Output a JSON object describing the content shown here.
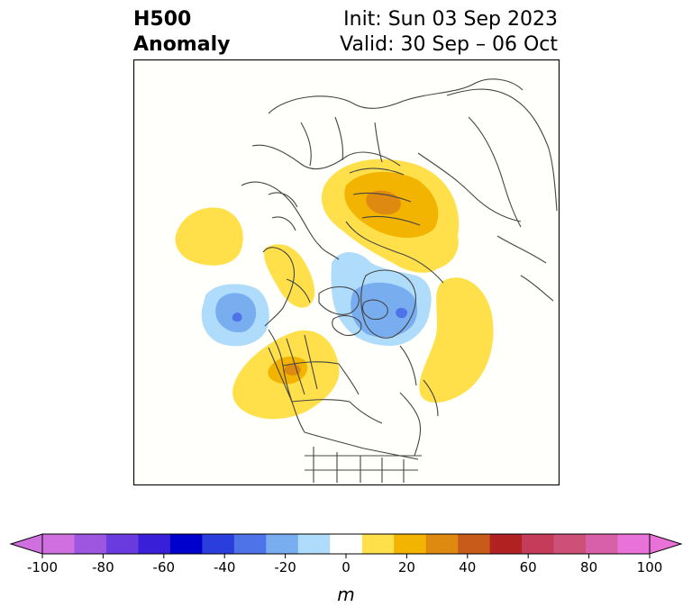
{
  "title": {
    "left_line1": "H500",
    "left_line2": "Anomaly",
    "right_line1": "Init: Sun 03 Sep 2023",
    "right_line2": "Valid: 30 Sep – 06 Oct"
  },
  "colorbar": {
    "unit": "m",
    "tick_labels": [
      "-100",
      "-80",
      "-60",
      "-40",
      "-20",
      "0",
      "20",
      "40",
      "60",
      "80",
      "100"
    ],
    "min_color": "#d070e0",
    "colors": [
      "#d070e0",
      "#9e55e0",
      "#6a3ce0",
      "#3a1fd8",
      "#0000cc",
      "#2a3ede",
      "#4e72e8",
      "#78aef0",
      "#aedcfa",
      "#ffffff",
      "#ffe04a",
      "#f2b400",
      "#de8a10",
      "#c85a1a",
      "#b22222",
      "#c43c5a",
      "#cc5078",
      "#d860a8",
      "#e872d8"
    ],
    "max_color": "#e872d8"
  },
  "map": {
    "projection": "north polar stereographic",
    "features": [
      "coastlines",
      "country borders",
      "US state borders",
      "Canadian province borders"
    ]
  }
}
